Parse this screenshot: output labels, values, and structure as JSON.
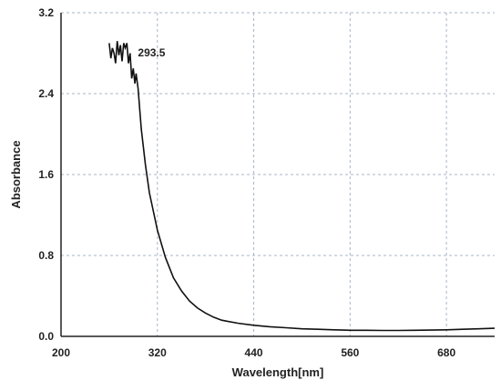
{
  "chart_data": {
    "type": "line",
    "title": "",
    "xlabel": "Wavelength[nm]",
    "ylabel": "Absorbance",
    "xlim": [
      200,
      740
    ],
    "ylim": [
      0.0,
      3.2
    ],
    "x_ticks": [
      200,
      320,
      440,
      560,
      680
    ],
    "x_tick_labels": [
      "200",
      "320",
      "440",
      "560",
      "680"
    ],
    "y_ticks": [
      0.0,
      0.8,
      1.6,
      2.4,
      3.2
    ],
    "y_tick_labels": [
      "0.0",
      "0.8",
      "1.6",
      "2.4",
      "3.2"
    ],
    "grid": true,
    "annotations": [
      {
        "text": "293.5",
        "x": 293.5,
        "y": 2.75
      }
    ],
    "series": [
      {
        "x": [
          260,
          262,
          264,
          266,
          268,
          270,
          272,
          274,
          276,
          278,
          280,
          282,
          284,
          286,
          288,
          290,
          292,
          293.5,
          296,
          300,
          305,
          310,
          320,
          330,
          340,
          350,
          360,
          370,
          380,
          390,
          400,
          420,
          440,
          460,
          480,
          500,
          520,
          540,
          560,
          580,
          600,
          620,
          640,
          660,
          680,
          700,
          720,
          740
        ],
        "y": [
          2.9,
          2.75,
          2.85,
          2.8,
          2.7,
          2.92,
          2.78,
          2.88,
          2.72,
          2.9,
          2.85,
          2.9,
          2.7,
          2.8,
          2.55,
          2.65,
          2.5,
          2.6,
          2.45,
          2.05,
          1.7,
          1.42,
          1.05,
          0.78,
          0.58,
          0.45,
          0.35,
          0.28,
          0.23,
          0.19,
          0.16,
          0.13,
          0.11,
          0.095,
          0.085,
          0.075,
          0.07,
          0.065,
          0.06,
          0.06,
          0.058,
          0.058,
          0.06,
          0.062,
          0.065,
          0.07,
          0.075,
          0.08
        ]
      }
    ]
  }
}
